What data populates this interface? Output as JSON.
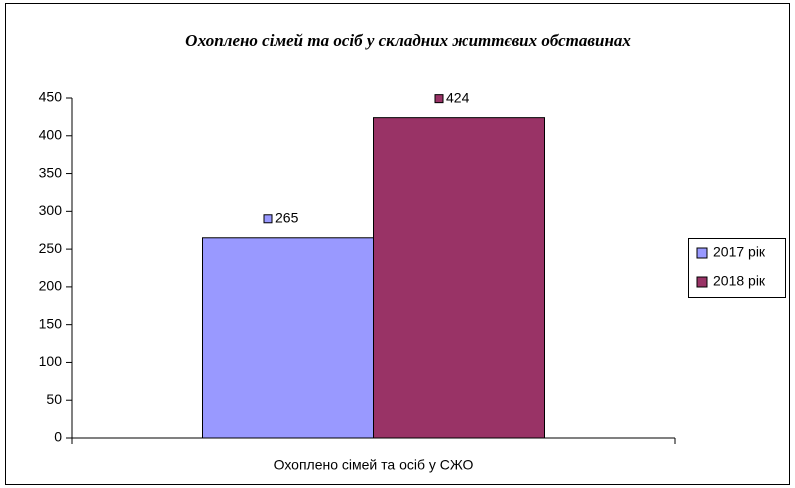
{
  "chart_data": {
    "type": "bar",
    "title": "Охоплено сімей та осіб у складних життєвих обставинах",
    "categories": [
      "Охоплено сімей та осіб у СЖО"
    ],
    "series": [
      {
        "name": "2017 рік",
        "color": "#9999ff",
        "values": [
          265
        ]
      },
      {
        "name": "2018 рік",
        "color": "#993366",
        "values": [
          424
        ]
      }
    ],
    "ylim": [
      0,
      450
    ],
    "yticks": [
      0,
      50,
      100,
      150,
      200,
      250,
      300,
      350,
      400,
      450
    ],
    "legend": "right"
  }
}
